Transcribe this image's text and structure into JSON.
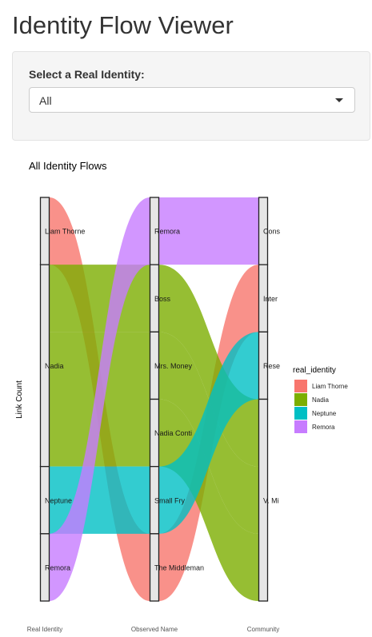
{
  "app": {
    "title": "Identity Flow Viewer"
  },
  "controls": {
    "select_label": "Select a Real Identity:",
    "selected_value": "All",
    "caret_icon": "chevron-down-icon"
  },
  "chart_data": {
    "type": "alluvial",
    "title": "All Identity Flows",
    "ylabel": "Link Count",
    "axes": [
      "Real Identity",
      "Observed Name",
      "Community"
    ],
    "strata": {
      "Real Identity": [
        "Liam Thorne",
        "Nadia",
        "Neptune",
        "Remora"
      ],
      "Observed Name": [
        "Remora",
        "Boss",
        "Mrs. Money",
        "Nadia Conti",
        "Small Fry",
        "The Middleman"
      ],
      "Community": [
        "Cons",
        "Inter",
        "Rese",
        "V. Mi"
      ]
    },
    "flows": [
      {
        "real_identity": "Liam Thorne",
        "observed_name": "The Middleman",
        "community": "Inter",
        "count": 1
      },
      {
        "real_identity": "Nadia",
        "observed_name": "Boss",
        "community": "V. Mi",
        "count": 1
      },
      {
        "real_identity": "Nadia",
        "observed_name": "Mrs. Money",
        "community": "V. Mi",
        "count": 1
      },
      {
        "real_identity": "Nadia",
        "observed_name": "Nadia Conti",
        "community": "V. Mi",
        "count": 1
      },
      {
        "real_identity": "Neptune",
        "observed_name": "Small Fry",
        "community": "Rese",
        "count": 1
      },
      {
        "real_identity": "Remora",
        "observed_name": "Remora",
        "community": "Cons",
        "count": 1
      }
    ],
    "legend": {
      "title": "real_identity",
      "position": "right",
      "items": [
        {
          "name": "Liam Thorne",
          "color": "#F8766D"
        },
        {
          "name": "Nadia",
          "color": "#7CAE00"
        },
        {
          "name": "Neptune",
          "color": "#00BFC4"
        },
        {
          "name": "Remora",
          "color": "#C77CFF"
        }
      ]
    }
  }
}
